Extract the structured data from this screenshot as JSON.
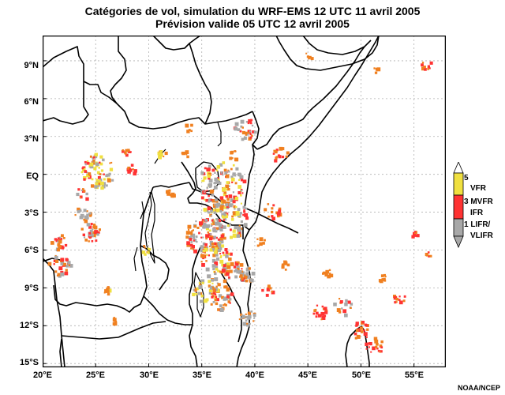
{
  "title": {
    "line1": "Catégories de vol, simulation du WRF-EMS 12 UTC 11 avril 2005",
    "line2": "Prévision valide 05 UTC 12 avril 2005"
  },
  "axes": {
    "x_labels": [
      "20°E",
      "25°E",
      "30°E",
      "35°E",
      "40°E",
      "45°E",
      "50°E",
      "55°E"
    ],
    "y_labels": [
      "9°N",
      "6°N",
      "3°N",
      "EQ",
      "3°S",
      "6°S",
      "9°S",
      "12°S",
      "15°S"
    ],
    "x_range": [
      20,
      58
    ],
    "y_range": [
      -15.3,
      11
    ]
  },
  "legend": {
    "labels": [
      "5",
      "VFR",
      "3 MVFR",
      "IFR",
      "1 LIFR/",
      "VLIFR"
    ],
    "colors": {
      "vfr": "#f0e040",
      "ifr": "#ff3333",
      "lifr": "#a8a8a8"
    }
  },
  "credit": "NOAA/NCEP",
  "colors": {
    "border": "#000000",
    "grid": "#b0b0b0",
    "orange": "#f08020"
  }
}
